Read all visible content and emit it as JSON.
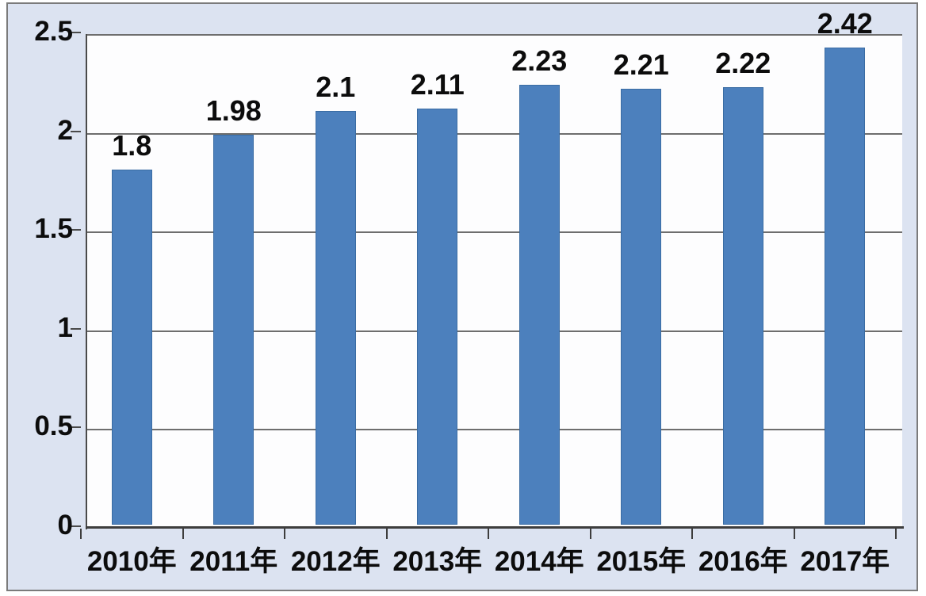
{
  "chart_data": {
    "type": "bar",
    "title": "",
    "xlabel": "",
    "ylabel": "",
    "categories": [
      "2010年",
      "2011年",
      "2012年",
      "2013年",
      "2014年",
      "2015年",
      "2016年",
      "2017年"
    ],
    "values": [
      1.8,
      1.98,
      2.1,
      2.11,
      2.23,
      2.21,
      2.22,
      2.42
    ],
    "value_labels": [
      "1.8",
      "1.98",
      "2.1",
      "2.11",
      "2.23",
      "2.21",
      "2.22",
      "2.42"
    ],
    "ylim": [
      0,
      2.5
    ],
    "yticks": [
      0,
      0.5,
      1,
      1.5,
      2,
      2.5
    ],
    "ytick_labels": [
      "0",
      "0.5",
      "1",
      "1.5",
      "2",
      "2.5"
    ],
    "grid": true,
    "legend_position": "none",
    "colors": {
      "bar_fill": "#4c80bd",
      "bar_border": "#3a6ca3",
      "chart_background": "#dce3f1",
      "plot_background": "#fdfdfe",
      "gridline": "#6e6e6e",
      "axis": "#3d3d3d",
      "text": "#0c0c0c",
      "frame_border": "#7b7b7b"
    }
  }
}
